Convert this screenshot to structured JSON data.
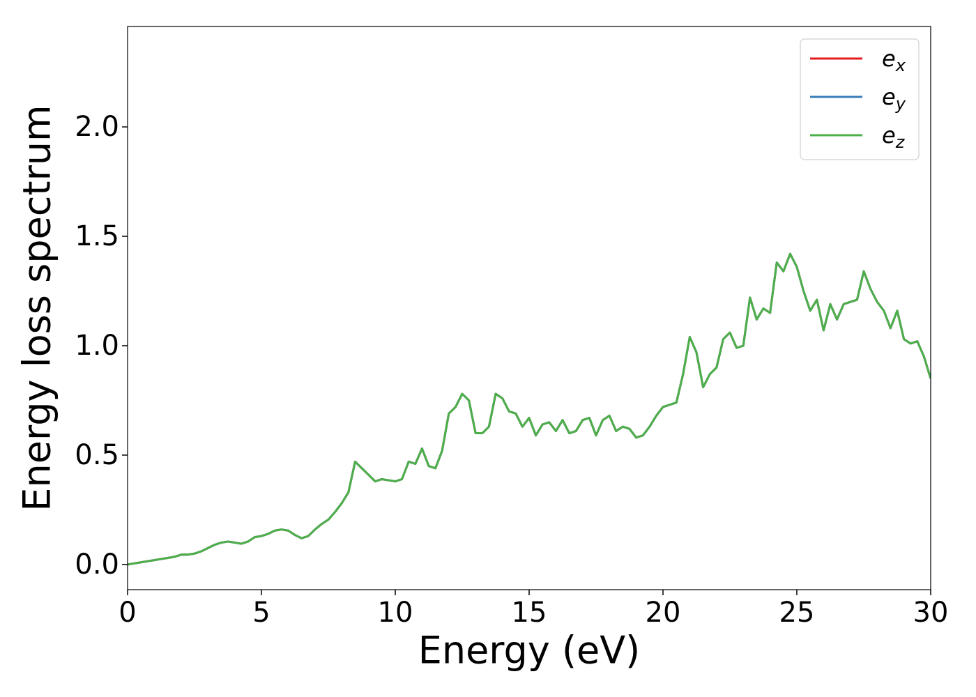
{
  "chart_data": {
    "type": "line",
    "xlabel": "Energy (eV)",
    "ylabel": "Energy loss spectrum",
    "x": [
      0,
      0.25,
      0.5,
      0.75,
      1,
      1.25,
      1.5,
      1.75,
      2,
      2.25,
      2.5,
      2.75,
      3,
      3.25,
      3.5,
      3.75,
      4,
      4.25,
      4.5,
      4.75,
      5,
      5.25,
      5.5,
      5.75,
      6,
      6.25,
      6.5,
      6.75,
      7,
      7.25,
      7.5,
      7.75,
      8,
      8.25,
      8.5,
      8.75,
      9,
      9.25,
      9.5,
      9.75,
      10,
      10.25,
      10.5,
      10.75,
      11,
      11.25,
      11.5,
      11.75,
      12,
      12.25,
      12.5,
      12.75,
      13,
      13.25,
      13.5,
      13.75,
      14,
      14.25,
      14.5,
      14.75,
      15,
      15.25,
      15.5,
      15.75,
      16,
      16.25,
      16.5,
      16.75,
      17,
      17.25,
      17.5,
      17.75,
      18,
      18.25,
      18.5,
      18.75,
      19,
      19.25,
      19.5,
      19.75,
      20,
      20.25,
      20.5,
      20.75,
      21,
      21.25,
      21.5,
      21.75,
      22,
      22.25,
      22.5,
      22.75,
      23,
      23.25,
      23.5,
      23.75,
      24,
      24.25,
      24.5,
      24.75,
      25,
      25.25,
      25.5,
      25.75,
      26,
      26.25,
      26.5,
      26.75,
      27,
      27.25,
      27.5,
      27.75,
      28,
      28.25,
      28.5,
      28.75,
      29,
      29.25,
      29.5,
      29.75,
      30
    ],
    "series": [
      {
        "name": "ex",
        "color": "#e41a1c",
        "values": [
          0,
          0.005,
          0.01,
          0.015,
          0.02,
          0.025,
          0.03,
          0.035,
          0.045,
          0.045,
          0.05,
          0.06,
          0.075,
          0.09,
          0.1,
          0.105,
          0.1,
          0.095,
          0.105,
          0.125,
          0.13,
          0.14,
          0.155,
          0.16,
          0.155,
          0.135,
          0.12,
          0.13,
          0.16,
          0.185,
          0.205,
          0.24,
          0.28,
          0.33,
          0.47,
          0.44,
          0.41,
          0.38,
          0.39,
          0.385,
          0.38,
          0.39,
          0.47,
          0.46,
          0.53,
          0.45,
          0.44,
          0.52,
          0.69,
          0.72,
          0.78,
          0.75,
          0.6,
          0.6,
          0.63,
          0.78,
          0.76,
          0.7,
          0.69,
          0.63,
          0.67,
          0.59,
          0.64,
          0.65,
          0.61,
          0.66,
          0.6,
          0.61,
          0.66,
          0.67,
          0.59,
          0.66,
          0.68,
          0.61,
          0.63,
          0.62,
          0.58,
          0.59,
          0.63,
          0.68,
          0.72,
          0.73,
          0.74,
          0.87,
          1.04,
          0.97,
          0.81,
          0.87,
          0.9,
          1.03,
          1.06,
          0.99,
          1.0,
          1.22,
          1.12,
          1.17,
          1.15,
          1.38,
          1.34,
          1.42,
          1.36,
          1.25,
          1.16,
          1.21,
          1.07,
          1.19,
          1.12,
          1.19,
          1.2,
          1.21,
          1.34,
          1.26,
          1.2,
          1.16,
          1.08,
          1.16,
          1.03,
          1.01,
          1.02,
          0.95,
          0.85
        ]
      },
      {
        "name": "ey",
        "color": "#377eb8",
        "values": [
          0,
          0.005,
          0.01,
          0.015,
          0.02,
          0.025,
          0.03,
          0.035,
          0.045,
          0.045,
          0.05,
          0.06,
          0.075,
          0.09,
          0.1,
          0.105,
          0.1,
          0.095,
          0.105,
          0.125,
          0.13,
          0.14,
          0.155,
          0.16,
          0.155,
          0.135,
          0.12,
          0.13,
          0.16,
          0.185,
          0.205,
          0.24,
          0.28,
          0.33,
          0.47,
          0.44,
          0.41,
          0.38,
          0.39,
          0.385,
          0.38,
          0.39,
          0.47,
          0.46,
          0.53,
          0.45,
          0.44,
          0.52,
          0.69,
          0.72,
          0.78,
          0.75,
          0.6,
          0.6,
          0.63,
          0.78,
          0.76,
          0.7,
          0.69,
          0.63,
          0.67,
          0.59,
          0.64,
          0.65,
          0.61,
          0.66,
          0.6,
          0.61,
          0.66,
          0.67,
          0.59,
          0.66,
          0.68,
          0.61,
          0.63,
          0.62,
          0.58,
          0.59,
          0.63,
          0.68,
          0.72,
          0.73,
          0.74,
          0.87,
          1.04,
          0.97,
          0.81,
          0.87,
          0.9,
          1.03,
          1.06,
          0.99,
          1.0,
          1.22,
          1.12,
          1.17,
          1.15,
          1.38,
          1.34,
          1.42,
          1.36,
          1.25,
          1.16,
          1.21,
          1.07,
          1.19,
          1.12,
          1.19,
          1.2,
          1.21,
          1.34,
          1.26,
          1.2,
          1.16,
          1.08,
          1.16,
          1.03,
          1.01,
          1.02,
          0.95,
          0.85
        ]
      },
      {
        "name": "ez",
        "color": "#4daf4a",
        "values": [
          0,
          0.005,
          0.01,
          0.015,
          0.02,
          0.025,
          0.03,
          0.035,
          0.045,
          0.045,
          0.05,
          0.06,
          0.075,
          0.09,
          0.1,
          0.105,
          0.1,
          0.095,
          0.105,
          0.125,
          0.13,
          0.14,
          0.155,
          0.16,
          0.155,
          0.135,
          0.12,
          0.13,
          0.16,
          0.185,
          0.205,
          0.24,
          0.28,
          0.33,
          0.47,
          0.44,
          0.41,
          0.38,
          0.39,
          0.385,
          0.38,
          0.39,
          0.47,
          0.46,
          0.53,
          0.45,
          0.44,
          0.52,
          0.69,
          0.72,
          0.78,
          0.75,
          0.6,
          0.6,
          0.63,
          0.78,
          0.76,
          0.7,
          0.69,
          0.63,
          0.67,
          0.59,
          0.64,
          0.65,
          0.61,
          0.66,
          0.6,
          0.61,
          0.66,
          0.67,
          0.59,
          0.66,
          0.68,
          0.61,
          0.63,
          0.62,
          0.58,
          0.59,
          0.63,
          0.68,
          0.72,
          0.73,
          0.74,
          0.87,
          1.04,
          0.97,
          0.81,
          0.87,
          0.9,
          1.03,
          1.06,
          0.99,
          1.0,
          1.22,
          1.12,
          1.17,
          1.15,
          1.38,
          1.34,
          1.42,
          1.36,
          1.25,
          1.16,
          1.21,
          1.07,
          1.19,
          1.12,
          1.19,
          1.2,
          1.21,
          1.34,
          1.26,
          1.2,
          1.16,
          1.08,
          1.16,
          1.03,
          1.01,
          1.02,
          0.95,
          0.85
        ]
      }
    ],
    "xlim": [
      0,
      30
    ],
    "xticks": [
      0,
      5,
      10,
      15,
      20,
      25,
      30
    ],
    "ylim": [
      -0.115,
      2.459
    ],
    "yticks": [
      {
        "value": 0,
        "label": "0.0"
      },
      {
        "value": 0.5,
        "label": "0.5"
      },
      {
        "value": 1,
        "label": "1.0"
      },
      {
        "value": 1.5,
        "label": "1.5"
      },
      {
        "value": 2,
        "label": "2.0"
      }
    ],
    "grid": false,
    "legend": "upper right"
  }
}
